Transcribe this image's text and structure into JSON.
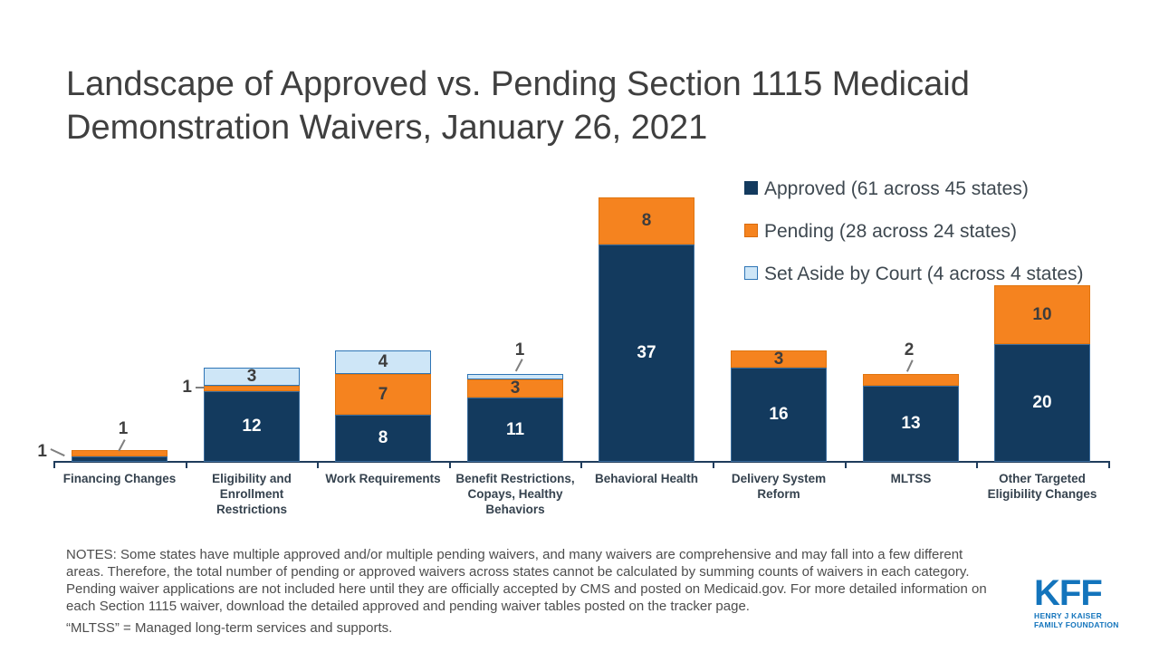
{
  "slide": {
    "title": "Landscape of Approved vs. Pending Section 1115 Medicaid Demonstration Waivers, January 26, 2021",
    "notes": "NOTES: Some states have multiple approved and/or multiple pending waivers, and many waivers are comprehensive and may fall into a few different areas. Therefore, the total number of pending or approved waivers across states cannot be calculated by summing counts of waivers in each category. Pending waiver applications are not included here until they are officially accepted by CMS and posted on Medicaid.gov. For more detailed information on each Section 1115 waiver, download the detailed approved and pending waiver tables posted on the tracker page.",
    "abbreviation_note": "“MLTSS” = Managed long-term services and supports.",
    "logo": {
      "text": "KFF",
      "subtext1": "HENRY J KAISER",
      "subtext2": "FAMILY FOUNDATION",
      "color": "#1374BC"
    }
  },
  "chart_data": {
    "type": "bar",
    "stacked": true,
    "title": "Landscape of Approved vs. Pending Section 1115 Medicaid Demonstration Waivers, January 26, 2021",
    "categories": [
      "Financing Changes",
      "Eligibility and Enrollment Restrictions",
      "Work Requirements",
      "Benefit Restrictions, Copays, Healthy Behaviors",
      "Behavioral Health",
      "Delivery System Reform",
      "MLTSS",
      "Other Targeted Eligibility Changes"
    ],
    "series": [
      {
        "name": "Approved (61 across 45 states)",
        "color": "#133A5E",
        "values": [
          1,
          12,
          8,
          11,
          37,
          16,
          13,
          20
        ]
      },
      {
        "name": "Pending (28 across 24 states)",
        "color": "#F5831F",
        "values": [
          1,
          1,
          7,
          3,
          8,
          3,
          2,
          10
        ]
      },
      {
        "name": "Set Aside by Court (4 across 4 states)",
        "color": "#CEE6F7",
        "border_color": "#2E75B6",
        "values": [
          0,
          3,
          4,
          1,
          0,
          0,
          0,
          0
        ]
      }
    ],
    "outside_labels": [
      {
        "category": 0,
        "series": 0,
        "side": "left"
      },
      {
        "category": 0,
        "series": 1,
        "side": "above"
      },
      {
        "category": 1,
        "series": 1,
        "side": "left"
      },
      {
        "category": 3,
        "series": 2,
        "side": "above"
      },
      {
        "category": 6,
        "series": 1,
        "side": "above"
      }
    ],
    "legend_position": "top-right",
    "ylim": [
      0,
      45
    ],
    "gridlines": false,
    "data_labels": true,
    "colors": {
      "axis": "#1F3C5C",
      "label_on_dark": "#FFFFFF",
      "label_on_light": "#404040",
      "leader_line": "#7F7F7F"
    }
  }
}
